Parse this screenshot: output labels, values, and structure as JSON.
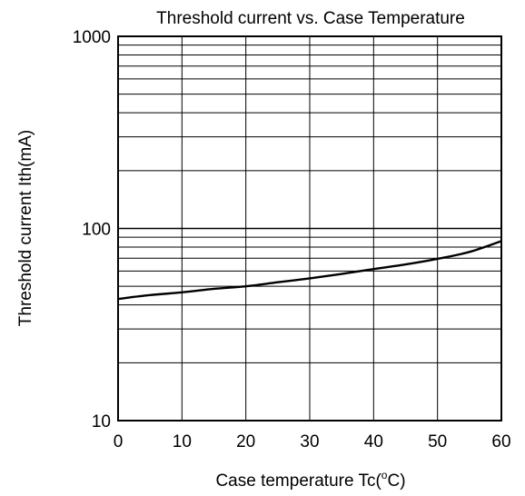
{
  "chart_data": {
    "type": "line",
    "title": "Threshold current vs. Case Temperature",
    "xlabel": {
      "prefix": "Case temperature Tc(",
      "sup": "o",
      "suffix": "C)"
    },
    "ylabel": "Threshold current Ith(mA)",
    "x_scale": "linear",
    "y_scale": "log",
    "xlim": [
      0,
      60
    ],
    "ylim": [
      10,
      1000
    ],
    "x_ticks": [
      0,
      10,
      20,
      30,
      40,
      50,
      60
    ],
    "x_tick_labels": [
      "0",
      "10",
      "20",
      "30",
      "40",
      "50",
      "60"
    ],
    "y_ticks": [
      10,
      100,
      1000
    ],
    "y_tick_labels": [
      "10",
      "100",
      "1000"
    ],
    "grid": true,
    "line_color": "#000000",
    "series": [
      {
        "x": [
          0,
          5,
          10,
          15,
          20,
          25,
          30,
          35,
          40,
          45,
          50,
          55,
          60
        ],
        "values": [
          43,
          45,
          46.5,
          48.5,
          50,
          52.5,
          55,
          58,
          61.5,
          65,
          69.5,
          75.5,
          86
        ]
      }
    ]
  }
}
